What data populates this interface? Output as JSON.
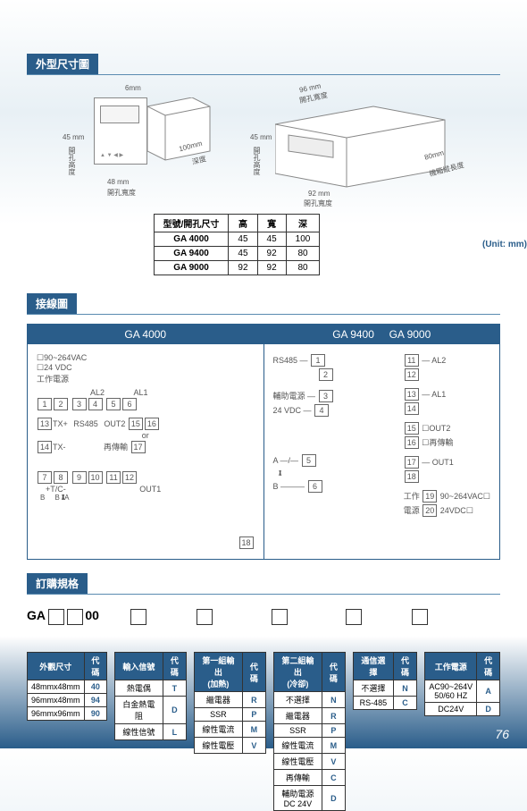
{
  "page_number": "76",
  "sections": {
    "dimensions": "外型尺寸圖",
    "wiring": "接線圖",
    "ordering": "訂購規格"
  },
  "dim_drawing_1": {
    "top": "6mm",
    "left": "45 mm",
    "right": "45mm",
    "bottom_w": "48 mm",
    "depth": "100mm",
    "left_label": "開孔高度",
    "bottom_label": "開孔寬度",
    "depth_label": "深度"
  },
  "dim_drawing_2": {
    "top": "96 mm",
    "left": "45 mm",
    "bottom": "92 mm",
    "depth": "80mm",
    "top_label": "開孔寬度",
    "left_label": "開孔高度",
    "bottom_label": "開孔寬度",
    "depth_label": "機箱縱長度"
  },
  "dim_table": {
    "headers": [
      "型號/開孔尺寸",
      "高",
      "寬",
      "深"
    ],
    "rows": [
      [
        "GA 4000",
        "45",
        "45",
        "100"
      ],
      [
        "GA 9400",
        "45",
        "92",
        "80"
      ],
      [
        "GA 9000",
        "92",
        "92",
        "80"
      ]
    ],
    "unit": "(Unit: mm)"
  },
  "wiring": {
    "panel1": {
      "title": "GA 4000",
      "labels": {
        "vac": "90~264VAC",
        "vdc": "24 VDC",
        "power": "工作電源",
        "al1": "AL1",
        "al2": "AL2",
        "rs485": "RS485",
        "txp": "TX+",
        "txm": "TX-",
        "out1": "OUT1",
        "out2": "OUT2",
        "or": "or",
        "retrans": "再傳輸",
        "tc": "T/C"
      }
    },
    "panel2": {
      "title_a": "GA 9400",
      "title_b": "GA 9000",
      "labels": {
        "rs485": "RS485",
        "aux": "輔助電源",
        "aux_v": "24 VDC",
        "al1": "AL1",
        "al2": "AL2",
        "out1": "OUT1",
        "out2": "OUT2",
        "retrans": "再傳輸",
        "power": "工作",
        "power2": "電源",
        "vac": "90~264VAC",
        "vdc": "24VDC"
      }
    }
  },
  "ordering": {
    "prefix": "GA",
    "suffix": "00",
    "tables": [
      {
        "headers": [
          "外觀尺寸",
          "代碼"
        ],
        "rows": [
          [
            "48mmx48mm",
            "40"
          ],
          [
            "96mmx48mm",
            "94"
          ],
          [
            "96mmx96mm",
            "90"
          ]
        ]
      },
      {
        "headers": [
          "輸入信號",
          "代碼"
        ],
        "rows": [
          [
            "熱電偶",
            "T"
          ],
          [
            "白金熱電阻",
            "D"
          ],
          [
            "線性信號",
            "L"
          ]
        ]
      },
      {
        "headers": [
          "第一組輸出\n(加熱)",
          "代碼"
        ],
        "rows": [
          [
            "繼電器",
            "R"
          ],
          [
            "SSR",
            "P"
          ],
          [
            "線性電流",
            "M"
          ],
          [
            "線性電壓",
            "V"
          ]
        ]
      },
      {
        "headers": [
          "第二組輸出\n(冷卻)",
          "代碼"
        ],
        "rows": [
          [
            "不選擇",
            "N"
          ],
          [
            "繼電器",
            "R"
          ],
          [
            "SSR",
            "P"
          ],
          [
            "線性電流",
            "M"
          ],
          [
            "線性電壓",
            "V"
          ],
          [
            "再傳輸",
            "C"
          ],
          [
            "輔助電源\nDC 24V",
            "D"
          ]
        ]
      },
      {
        "headers": [
          "通信選擇",
          "代碼"
        ],
        "rows": [
          [
            "不選擇",
            "N"
          ],
          [
            "RS-485",
            "C"
          ]
        ]
      },
      {
        "headers": [
          "工作電源",
          "代碼"
        ],
        "rows": [
          [
            "AC90~264V\n50/60 HZ",
            "A"
          ],
          [
            "DC24V",
            "D"
          ]
        ]
      }
    ]
  },
  "colors": {
    "primary": "#2a5d8a",
    "line": "#5a8bb0",
    "text_muted": "#555"
  }
}
